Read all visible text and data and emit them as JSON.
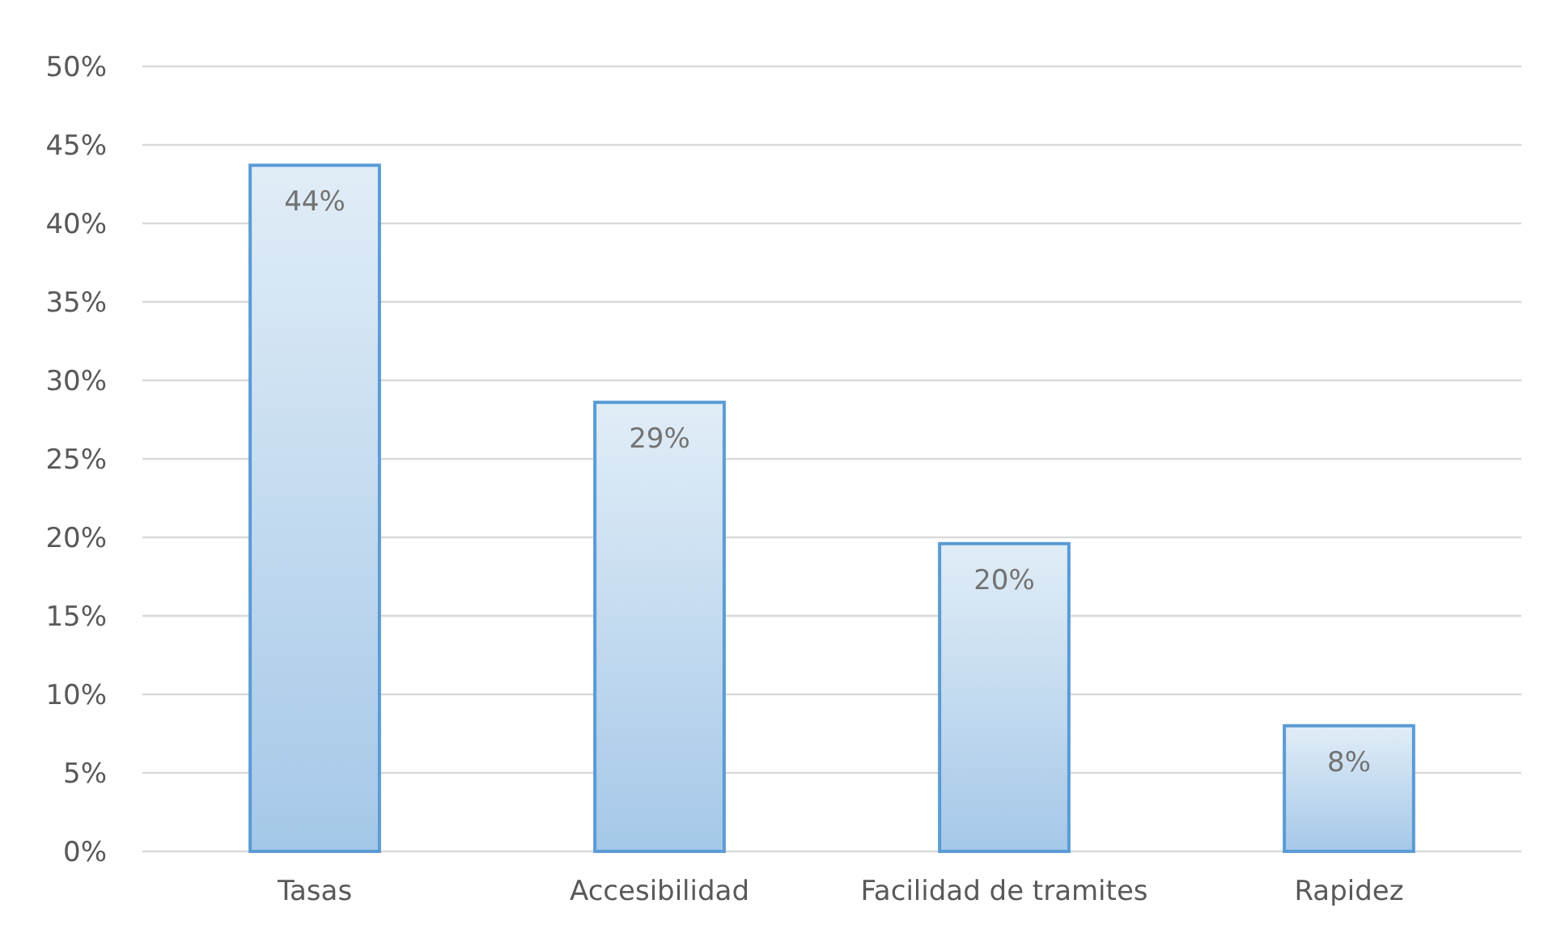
{
  "chart_data": {
    "type": "bar",
    "categories": [
      "Tasas",
      "Accesibilidad",
      "Facilidad de tramites",
      "Rapidez"
    ],
    "values": [
      43.7,
      28.6,
      19.6,
      8.0
    ],
    "value_labels": [
      "44%",
      "29%",
      "20%",
      "8%"
    ],
    "color": "#5b9bd5",
    "ylim": [
      0,
      50
    ],
    "yticks": [
      {
        "value": 0,
        "label": "0%"
      },
      {
        "value": 5,
        "label": "5%"
      },
      {
        "value": 10,
        "label": "10%"
      },
      {
        "value": 15,
        "label": "15%"
      },
      {
        "value": 20,
        "label": "20%"
      },
      {
        "value": 25,
        "label": "25%"
      },
      {
        "value": 30,
        "label": "30%"
      },
      {
        "value": 35,
        "label": "35%"
      },
      {
        "value": 40,
        "label": "40%"
      },
      {
        "value": 45,
        "label": "45%"
      },
      {
        "value": 50,
        "label": "50%"
      }
    ],
    "grid": true
  }
}
